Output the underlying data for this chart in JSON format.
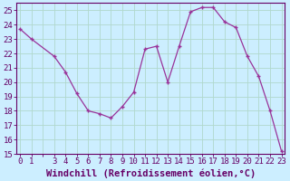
{
  "x": [
    0,
    1,
    3,
    4,
    5,
    6,
    7,
    8,
    9,
    10,
    11,
    12,
    13,
    14,
    15,
    16,
    17,
    18,
    19,
    20,
    21,
    22,
    23
  ],
  "y": [
    23.7,
    23.0,
    21.8,
    20.7,
    19.2,
    18.0,
    17.8,
    17.5,
    18.3,
    19.3,
    22.3,
    22.5,
    20.0,
    22.5,
    24.9,
    25.2,
    25.2,
    24.2,
    23.8,
    21.8,
    20.4,
    18.0,
    15.2
  ],
  "line_color": "#993399",
  "marker": "+",
  "bg_color": "#cceeff",
  "grid_color": "#b0d8cc",
  "xlabel": "Windchill (Refroidissement éolien,°C)",
  "ylim": [
    15,
    25.5
  ],
  "xlim": [
    -0.3,
    23.3
  ],
  "yticks": [
    15,
    16,
    17,
    18,
    19,
    20,
    21,
    22,
    23,
    24,
    25
  ],
  "xticks": [
    0,
    1,
    2,
    3,
    4,
    5,
    6,
    7,
    8,
    9,
    10,
    11,
    12,
    13,
    14,
    15,
    16,
    17,
    18,
    19,
    20,
    21,
    22,
    23
  ],
  "xtick_labels": [
    "0",
    "1",
    "",
    "3",
    "4",
    "5",
    "6",
    "7",
    "8",
    "9",
    "10",
    "11",
    "12",
    "13",
    "14",
    "15",
    "16",
    "17",
    "18",
    "19",
    "20",
    "21",
    "22",
    "23"
  ],
  "xlabel_color": "#660066",
  "tick_color": "#660066",
  "axis_color": "#660066",
  "tick_fontsize": 6.5,
  "xlabel_fontsize": 7.5
}
